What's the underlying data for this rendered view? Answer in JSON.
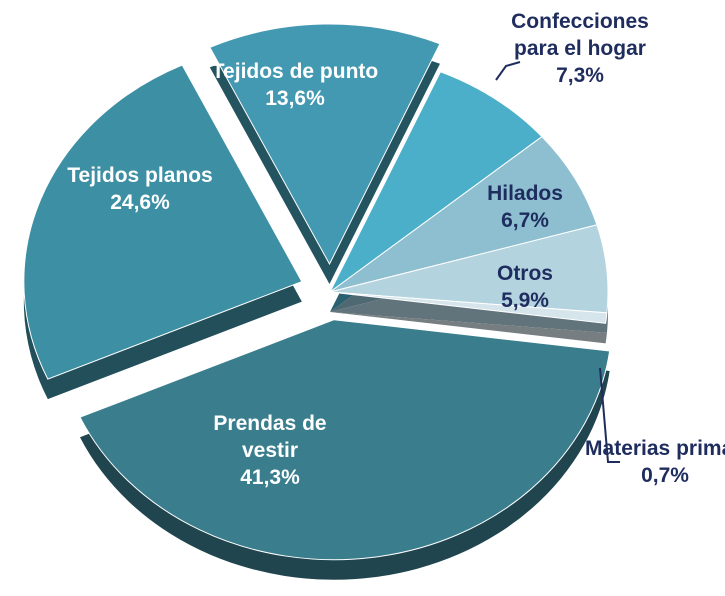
{
  "chart_data": {
    "type": "pie",
    "categories": [
      "Prendas de vestir",
      "Tejidos planos",
      "Tejidos de punto",
      "Confecciones para el hogar",
      "Hilados",
      "Otros",
      "Materias primas"
    ],
    "values": [
      41.3,
      24.6,
      13.6,
      7.3,
      6.7,
      5.9,
      0.7
    ],
    "value_labels": [
      "41,3%",
      "24,6%",
      "13,6%",
      "7,3%",
      "6,7%",
      "5,9%",
      "0,7%"
    ],
    "colors": [
      "#3a7e8e",
      "#3d8fa3",
      "#4399b1",
      "#4cafc9",
      "#8dbfd0",
      "#b3d3df",
      "#d6e5eb"
    ],
    "label_colors": [
      "#ffffff",
      "#ffffff",
      "#ffffff",
      "#1f2d5e",
      "#1f2d5e",
      "#1f2d5e",
      "#1f2d5e"
    ]
  }
}
